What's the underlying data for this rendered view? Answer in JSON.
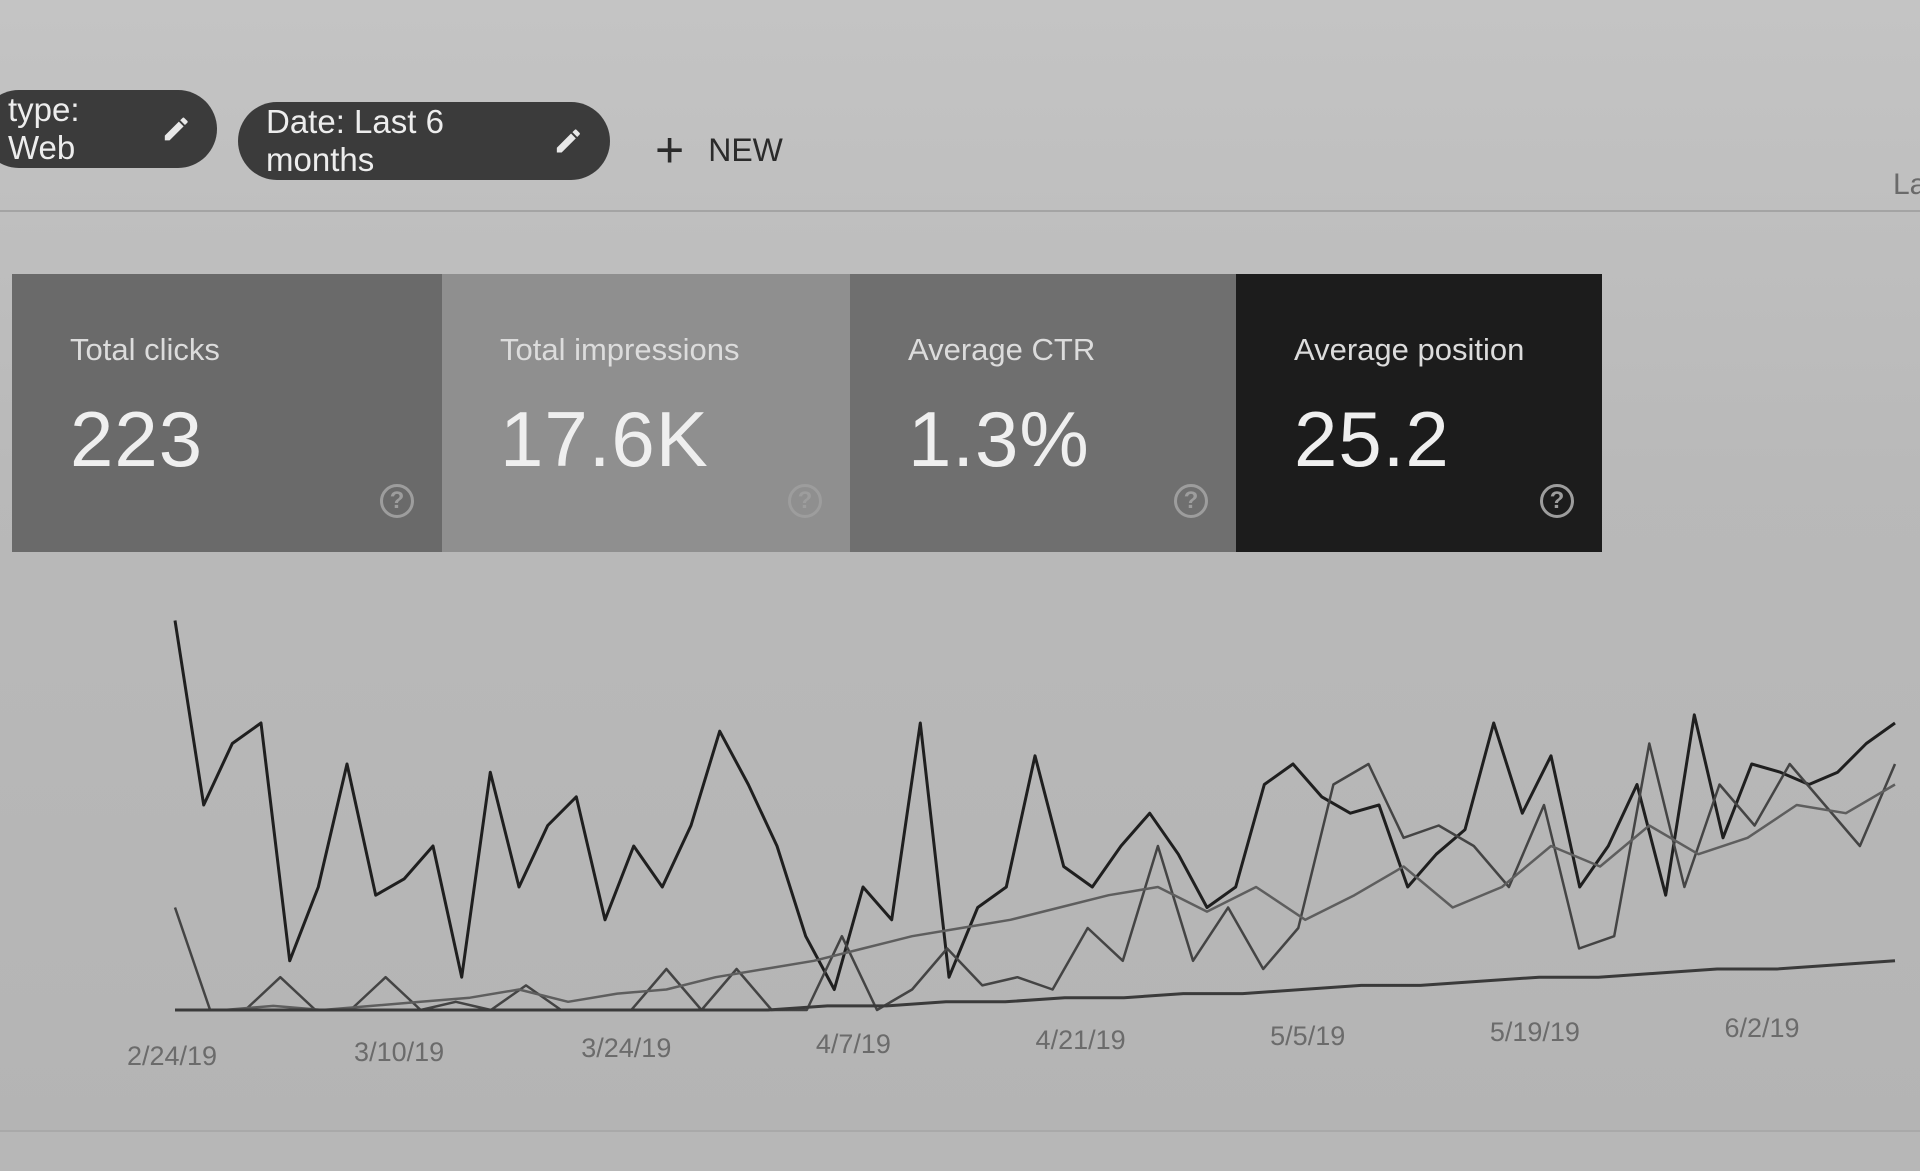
{
  "filters": {
    "type_chip": "type: Web",
    "date_chip": "Date: Last 6 months",
    "new_label": "NEW",
    "right_hint": "La"
  },
  "cards": [
    {
      "label": "Total clicks",
      "value": "223"
    },
    {
      "label": "Total impressions",
      "value": "17.6K"
    },
    {
      "label": "Average CTR",
      "value": "1.3%"
    },
    {
      "label": "Average position",
      "value": "25.2"
    }
  ],
  "help_icon": "?",
  "colors": {
    "clicks": "#6a6a6a",
    "impressions": "#8f8f8f",
    "ctr": "#6f6f6f",
    "position": "#1c1c1c"
  },
  "chart_data": {
    "type": "line",
    "x_ticks": [
      "2/24/19",
      "3/10/19",
      "3/24/19",
      "4/7/19",
      "4/21/19",
      "5/5/19",
      "5/19/19",
      "6/2/19"
    ],
    "grid": false,
    "legend": "none",
    "series": [
      {
        "values": [
          95,
          50,
          65,
          70,
          12,
          30,
          60,
          28,
          32,
          40,
          8,
          58,
          30,
          45,
          52,
          22,
          40,
          30,
          45,
          68,
          55,
          40,
          18,
          5,
          30,
          22,
          70,
          8,
          25,
          30,
          62,
          35,
          30,
          40,
          48,
          38,
          25,
          30,
          55,
          60,
          52,
          48,
          50,
          30,
          38,
          44,
          70,
          48,
          62,
          30,
          40,
          55,
          28,
          72,
          42,
          60,
          58,
          55,
          58,
          65,
          70
        ]
      },
      {
        "values": [
          25,
          0,
          0,
          8,
          0,
          0,
          8,
          0,
          2,
          0,
          6,
          0,
          0,
          0,
          10,
          0,
          10,
          0,
          0,
          18,
          0,
          5,
          15,
          6,
          8,
          5,
          20,
          12,
          40,
          12,
          25,
          10,
          20,
          55,
          60,
          42,
          45,
          40,
          30,
          50,
          15,
          18,
          65,
          30,
          55,
          45,
          60,
          50,
          40,
          60
        ]
      },
      {
        "values": [
          0,
          0,
          1,
          0,
          1,
          2,
          3,
          5,
          2,
          4,
          5,
          8,
          10,
          12,
          15,
          18,
          20,
          22,
          25,
          28,
          30,
          24,
          30,
          22,
          28,
          35,
          25,
          30,
          40,
          35,
          45,
          38,
          42,
          50,
          48,
          55
        ]
      },
      {
        "values": [
          0,
          0,
          0,
          0,
          0,
          0,
          0,
          0,
          0,
          0,
          0,
          1,
          1,
          2,
          2,
          3,
          3,
          4,
          4,
          5,
          6,
          6,
          7,
          8,
          8,
          9,
          10,
          10,
          11,
          12
        ]
      }
    ]
  }
}
